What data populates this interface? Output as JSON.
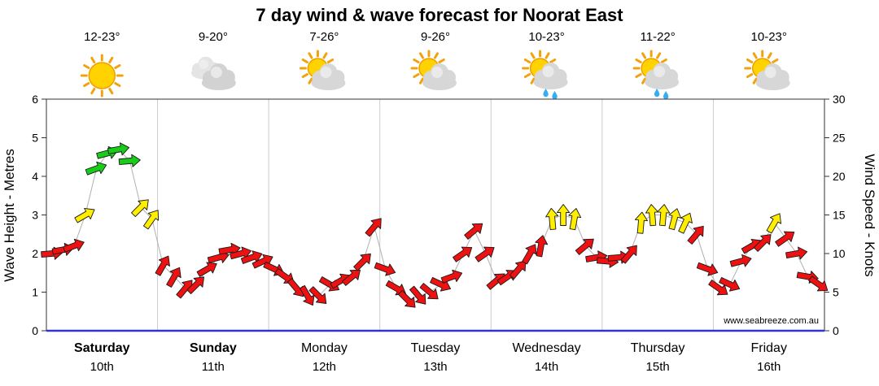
{
  "title": "7 day wind & wave forecast for Noorat East",
  "watermark": "www.seabreeze.com.au",
  "axes": {
    "left_label": "Wave Height - Metres",
    "right_label": "Wind Speed - Knots",
    "left_ticks": [
      0,
      1,
      2,
      3,
      4,
      5,
      6
    ],
    "right_ticks": [
      0,
      5,
      10,
      15,
      20,
      25,
      30
    ],
    "left_max": 6,
    "right_max": 30,
    "grid": "vertical-day-separators-only",
    "bottom_axis_color": "#3333cc"
  },
  "days": [
    {
      "name": "Saturday",
      "date": "10th",
      "temp": "12-23°",
      "weather": "sunny",
      "weekend": true
    },
    {
      "name": "Sunday",
      "date": "11th",
      "temp": "9-20°",
      "weather": "cloudy",
      "weekend": true
    },
    {
      "name": "Monday",
      "date": "12th",
      "temp": "7-26°",
      "weather": "partly-cloudy",
      "weekend": false
    },
    {
      "name": "Tuesday",
      "date": "13th",
      "temp": "9-26°",
      "weather": "partly-cloudy",
      "weekend": false
    },
    {
      "name": "Wednesday",
      "date": "14th",
      "temp": "10-23°",
      "weather": "partly-cloudy-rain",
      "weekend": false
    },
    {
      "name": "Thursday",
      "date": "15th",
      "temp": "11-22°",
      "weather": "partly-cloudy-rain",
      "weekend": false
    },
    {
      "name": "Friday",
      "date": "16th",
      "temp": "10-23°",
      "weather": "partly-cloudy",
      "weekend": false
    }
  ],
  "chart_data": {
    "type": "wind-arrows",
    "title": "7 day wind & wave forecast for Noorat East",
    "points_per_day": 10,
    "wave_axis_range_metres": [
      0,
      6
    ],
    "wind_axis_range_knots": [
      0,
      30
    ],
    "wind_speed_knots": [
      10,
      10.5,
      11,
      15,
      21,
      23,
      23.5,
      22,
      16,
      14.5,
      8.5,
      7,
      5.5,
      6,
      8,
      9.5,
      10.5,
      10,
      9.5,
      9,
      8,
      7,
      5.5,
      4.5,
      4.5,
      6,
      6.5,
      7,
      9,
      13.5,
      8,
      5.5,
      4,
      4.5,
      5,
      6,
      7,
      10,
      13,
      10,
      6.5,
      7,
      8,
      10,
      11,
      14.5,
      15,
      14.5,
      11,
      9.5,
      9,
      9.5,
      10,
      14,
      15,
      15,
      14.5,
      14,
      12.5,
      8,
      5.5,
      6,
      9,
      11,
      11.5,
      14,
      12,
      10,
      7,
      6
    ],
    "wind_direction_deg": [
      85,
      80,
      70,
      60,
      70,
      75,
      80,
      85,
      45,
      35,
      30,
      30,
      40,
      45,
      60,
      75,
      80,
      75,
      70,
      65,
      115,
      125,
      140,
      150,
      135,
      120,
      60,
      50,
      45,
      40,
      110,
      120,
      135,
      140,
      130,
      115,
      70,
      55,
      50,
      55,
      50,
      55,
      40,
      30,
      10,
      -5,
      0,
      10,
      50,
      80,
      95,
      85,
      40,
      5,
      -5,
      5,
      15,
      25,
      40,
      110,
      125,
      115,
      75,
      60,
      45,
      30,
      55,
      80,
      100,
      125
    ],
    "color_thresholds_knots": {
      "yellow_min": 14,
      "green_min": 20
    },
    "speed_colors": {
      "red": "#ee1111",
      "yellow": "#ffee00",
      "green": "#17cd17"
    },
    "connector_color": "#b0b0b0",
    "legend_position": "none"
  }
}
